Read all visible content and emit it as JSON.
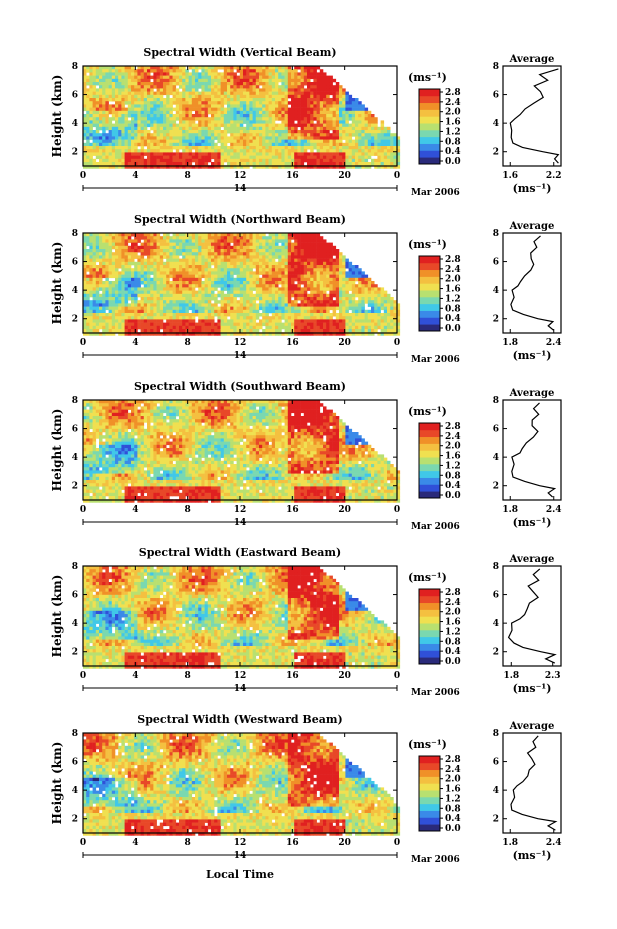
{
  "common": {
    "ylabel": "Height (km)",
    "unit_label": "(ms⁻¹)",
    "colorbar_ticks": [
      "2.8",
      "2.4",
      "2.0",
      "1.6",
      "1.2",
      "0.8",
      "0.4",
      "0.0"
    ],
    "x_ticks": [
      "0",
      "4",
      "8",
      "12",
      "16",
      "20",
      "0"
    ],
    "y_ticks": [
      "2",
      "4",
      "6",
      "8"
    ],
    "day_label": "14",
    "month_label": "Mar 2006",
    "avg_title": "Average",
    "avg_y_ticks": [
      "2",
      "4",
      "6",
      "8"
    ],
    "xlabel": "Local Time"
  },
  "colors": {
    "scale": [
      "#2a2a7a",
      "#3050d8",
      "#3a8ae8",
      "#40c8e8",
      "#7ad8b0",
      "#b8e070",
      "#f0e050",
      "#f4c040",
      "#f09028",
      "#e84828",
      "#e02020"
    ]
  },
  "chart_data": [
    {
      "type": "heatmap",
      "title": "Spectral Width (Vertical Beam)",
      "x_range_hours": [
        0,
        24
      ],
      "y_range_km": [
        1,
        8
      ],
      "colorbar_range": [
        0.0,
        2.8
      ],
      "avg_profile": {
        "x_ticks": [
          "1.6",
          "2.2"
        ],
        "x_range": [
          1.5,
          2.3
        ],
        "height_km": [
          1.2,
          1.5,
          1.8,
          2.0,
          2.3,
          2.6,
          3.0,
          3.5,
          4.0,
          4.3,
          4.6,
          5.0,
          5.4,
          5.8,
          6.2,
          6.6,
          7.0,
          7.4,
          7.8
        ],
        "value": [
          2.28,
          2.2,
          2.26,
          2.05,
          1.78,
          1.62,
          1.6,
          1.62,
          1.6,
          1.66,
          1.76,
          1.8,
          1.92,
          2.06,
          2.0,
          1.94,
          2.12,
          2.02,
          2.24
        ]
      }
    },
    {
      "type": "heatmap",
      "title": "Spectral Width (Northward Beam)",
      "x_range_hours": [
        0,
        24
      ],
      "y_range_km": [
        1,
        8
      ],
      "colorbar_range": [
        0.0,
        2.8
      ],
      "avg_profile": {
        "x_ticks": [
          "1.8",
          "2.4"
        ],
        "x_range": [
          1.7,
          2.5
        ],
        "height_km": [
          1.2,
          1.5,
          1.8,
          2.0,
          2.3,
          2.6,
          3.0,
          3.5,
          4.0,
          4.3,
          4.6,
          5.0,
          5.4,
          5.8,
          6.2,
          6.6,
          7.0,
          7.4,
          7.8
        ],
        "value": [
          2.38,
          2.3,
          2.4,
          2.2,
          1.98,
          1.84,
          1.8,
          1.84,
          1.82,
          1.9,
          1.96,
          2.0,
          2.08,
          2.14,
          2.1,
          2.06,
          2.16,
          2.12,
          2.2
        ]
      }
    },
    {
      "type": "heatmap",
      "title": "Spectral Width (Southward Beam)",
      "x_range_hours": [
        0,
        24
      ],
      "y_range_km": [
        1,
        8
      ],
      "colorbar_range": [
        0.0,
        2.8
      ],
      "avg_profile": {
        "x_ticks": [
          "1.8",
          "2.4"
        ],
        "x_range": [
          1.7,
          2.5
        ],
        "height_km": [
          1.2,
          1.5,
          1.8,
          2.0,
          2.3,
          2.6,
          3.0,
          3.5,
          4.0,
          4.3,
          4.6,
          5.0,
          5.4,
          5.8,
          6.2,
          6.6,
          7.0,
          7.4,
          7.8
        ],
        "value": [
          2.4,
          2.3,
          2.42,
          2.22,
          2.0,
          1.86,
          1.82,
          1.86,
          1.84,
          1.92,
          1.98,
          2.02,
          2.1,
          2.16,
          2.12,
          2.08,
          2.18,
          2.14,
          2.22
        ]
      }
    },
    {
      "type": "heatmap",
      "title": "Spectral Width (Eastward Beam)",
      "x_range_hours": [
        0,
        24
      ],
      "y_range_km": [
        1,
        8
      ],
      "colorbar_range": [
        0.0,
        2.8
      ],
      "avg_profile": {
        "x_ticks": [
          "1.8",
          "2.3"
        ],
        "x_range": [
          1.7,
          2.4
        ],
        "height_km": [
          1.2,
          1.5,
          1.8,
          2.0,
          2.3,
          2.6,
          3.0,
          3.5,
          4.0,
          4.3,
          4.6,
          5.0,
          5.4,
          5.8,
          6.2,
          6.6,
          7.0,
          7.4,
          7.8
        ],
        "value": [
          2.32,
          2.22,
          2.34,
          2.14,
          1.94,
          1.82,
          1.78,
          1.82,
          1.8,
          1.88,
          1.94,
          1.98,
          2.04,
          2.1,
          2.06,
          2.02,
          2.12,
          2.08,
          2.16
        ]
      }
    },
    {
      "type": "heatmap",
      "title": "Spectral Width (Westward Beam)",
      "x_range_hours": [
        0,
        24
      ],
      "y_range_km": [
        1,
        8
      ],
      "colorbar_range": [
        0.0,
        2.8
      ],
      "avg_profile": {
        "x_ticks": [
          "1.8",
          "2.4"
        ],
        "x_range": [
          1.7,
          2.5
        ],
        "height_km": [
          1.2,
          1.5,
          1.8,
          2.0,
          2.3,
          2.6,
          3.0,
          3.5,
          4.0,
          4.3,
          4.6,
          5.0,
          5.4,
          5.8,
          6.2,
          6.6,
          7.0,
          7.4,
          7.8
        ],
        "value": [
          2.4,
          2.3,
          2.42,
          2.2,
          1.98,
          1.84,
          1.8,
          1.84,
          1.82,
          1.9,
          1.96,
          2.02,
          2.08,
          2.14,
          2.1,
          2.06,
          2.16,
          2.12,
          2.2
        ]
      }
    }
  ]
}
